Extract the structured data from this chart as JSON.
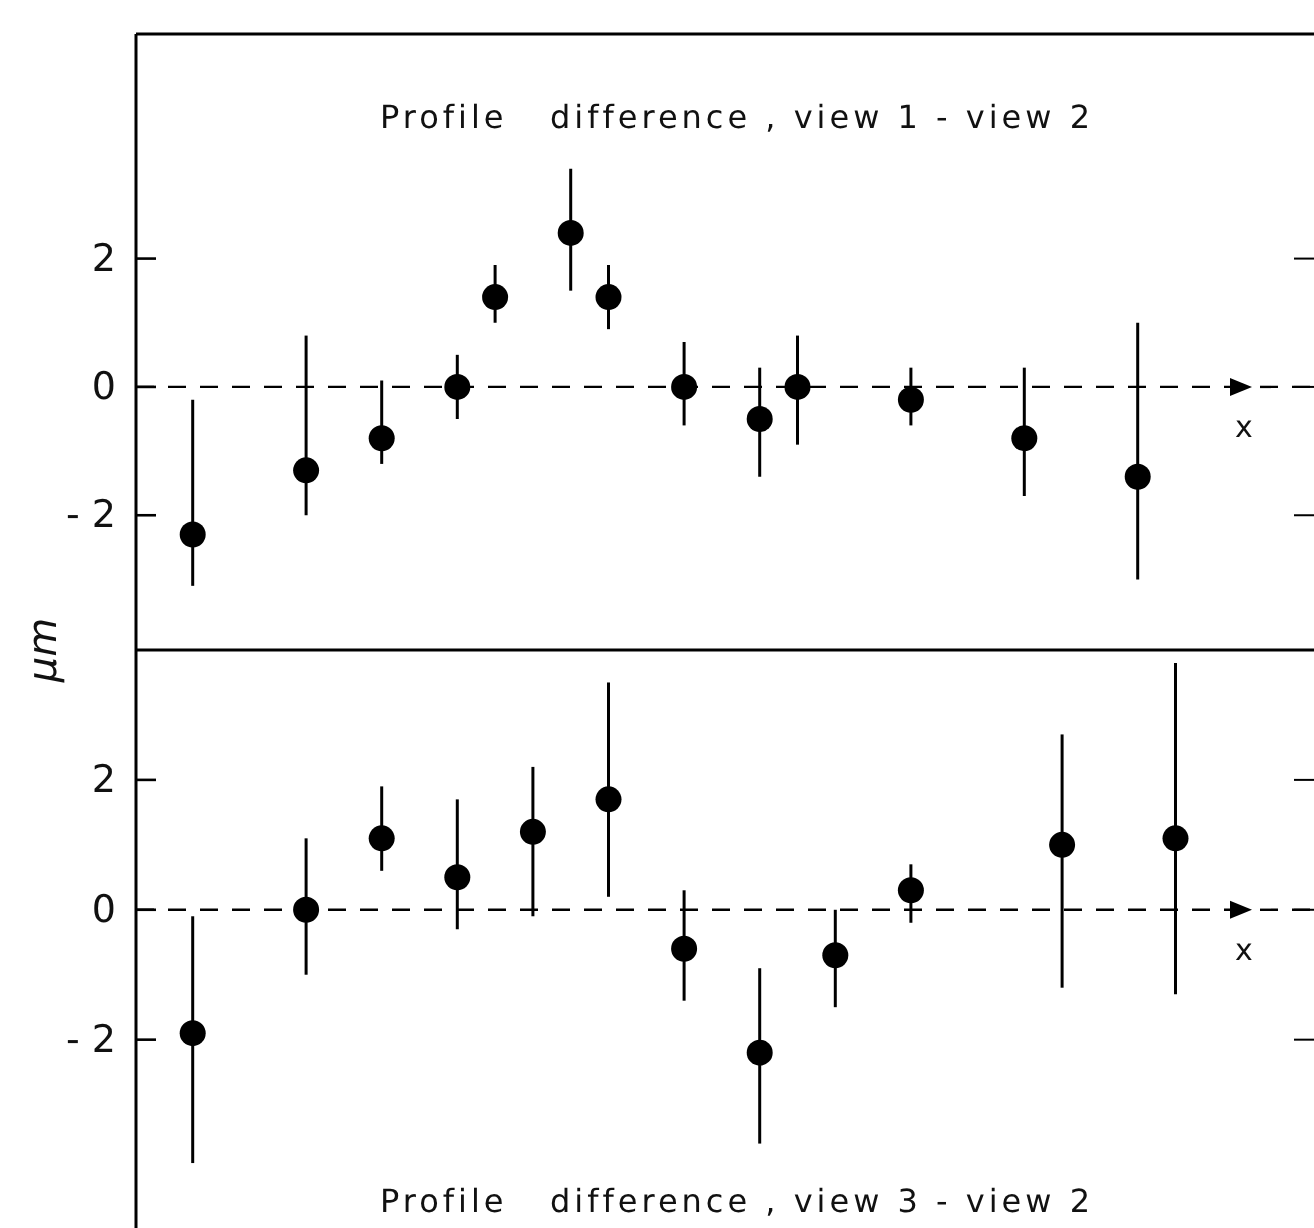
{
  "chart_data": [
    {
      "type": "scatter",
      "title": "Profile   difference , view 1 - view 2",
      "ylabel": "μm",
      "annotations": [
        "x"
      ],
      "marker": "circle",
      "grid": false,
      "tick_labels": "y",
      "categories": [
        null,
        null,
        null,
        null,
        null,
        null,
        null,
        null,
        null,
        null,
        null,
        null,
        null,
        null,
        null,
        null,
        null,
        null,
        null,
        null,
        null,
        null,
        null,
        null,
        null,
        null,
        null,
        null,
        null,
        null
      ],
      "values": [
        null,
        -2.3,
        null,
        null,
        -1.3,
        null,
        -0.8,
        null,
        0.0,
        1.4,
        null,
        2.4,
        1.4,
        null,
        0.0,
        null,
        -0.5,
        0.0,
        null,
        null,
        -0.2,
        null,
        null,
        -0.8,
        null,
        null,
        -1.4,
        null,
        null,
        null
      ],
      "errors": [
        null,
        [
          -3.1,
          -0.2
        ],
        null,
        null,
        [
          -2.0,
          0.8
        ],
        null,
        [
          -1.2,
          0.1
        ],
        null,
        [
          -0.5,
          0.5
        ],
        [
          1.0,
          1.9
        ],
        null,
        [
          1.5,
          3.4
        ],
        [
          0.9,
          1.9
        ],
        null,
        [
          -0.6,
          0.7
        ],
        null,
        [
          -1.4,
          0.3
        ],
        [
          -0.9,
          0.8
        ],
        null,
        null,
        [
          -0.6,
          0.3
        ],
        null,
        null,
        [
          -1.7,
          0.3
        ],
        null,
        null,
        [
          -3.0,
          1.0
        ],
        null,
        null,
        null
      ],
      "color": "#000000",
      "ylim": [
        -4.1,
        5.5
      ],
      "yticks": [
        -2,
        0,
        2
      ],
      "ref_lines": [
        {
          "axis": "y",
          "value": 0,
          "line_style": "dashed"
        }
      ]
    },
    {
      "type": "scatter",
      "title": "Profile   difference , view 3 - view 2",
      "annotations": [
        "x"
      ],
      "marker": "circle",
      "grid": false,
      "tick_labels": "y",
      "categories": [
        null,
        null,
        null,
        null,
        null,
        null,
        null,
        null,
        null,
        null,
        null,
        null,
        null,
        null,
        null,
        null,
        null,
        null,
        null,
        null,
        null,
        null,
        null,
        null,
        null,
        null,
        null,
        null,
        null,
        null
      ],
      "values": [
        null,
        -1.9,
        null,
        null,
        0.0,
        null,
        1.1,
        null,
        0.5,
        null,
        1.2,
        null,
        1.7,
        null,
        -0.6,
        null,
        -2.2,
        null,
        -0.7,
        null,
        0.3,
        null,
        null,
        null,
        1.0,
        null,
        null,
        1.1,
        null,
        null
      ],
      "errors": [
        null,
        [
          -3.9,
          -0.1
        ],
        null,
        null,
        [
          -1.0,
          1.1
        ],
        null,
        [
          0.6,
          1.9
        ],
        null,
        [
          -0.3,
          1.7
        ],
        null,
        [
          -0.1,
          2.2
        ],
        null,
        [
          0.2,
          3.5
        ],
        null,
        [
          -1.4,
          0.3
        ],
        null,
        [
          -3.6,
          -0.9
        ],
        null,
        [
          -1.5,
          0.0
        ],
        null,
        [
          -0.2,
          0.7
        ],
        null,
        null,
        null,
        [
          -1.2,
          2.7
        ],
        null,
        null,
        [
          -1.3,
          3.8
        ],
        null,
        null
      ],
      "color": "#000000",
      "ylim": [
        -4.9,
        4.0
      ],
      "yticks": [
        -2,
        0,
        2
      ],
      "ref_lines": [
        {
          "axis": "y",
          "value": 0,
          "line_style": "dashed"
        }
      ]
    }
  ]
}
